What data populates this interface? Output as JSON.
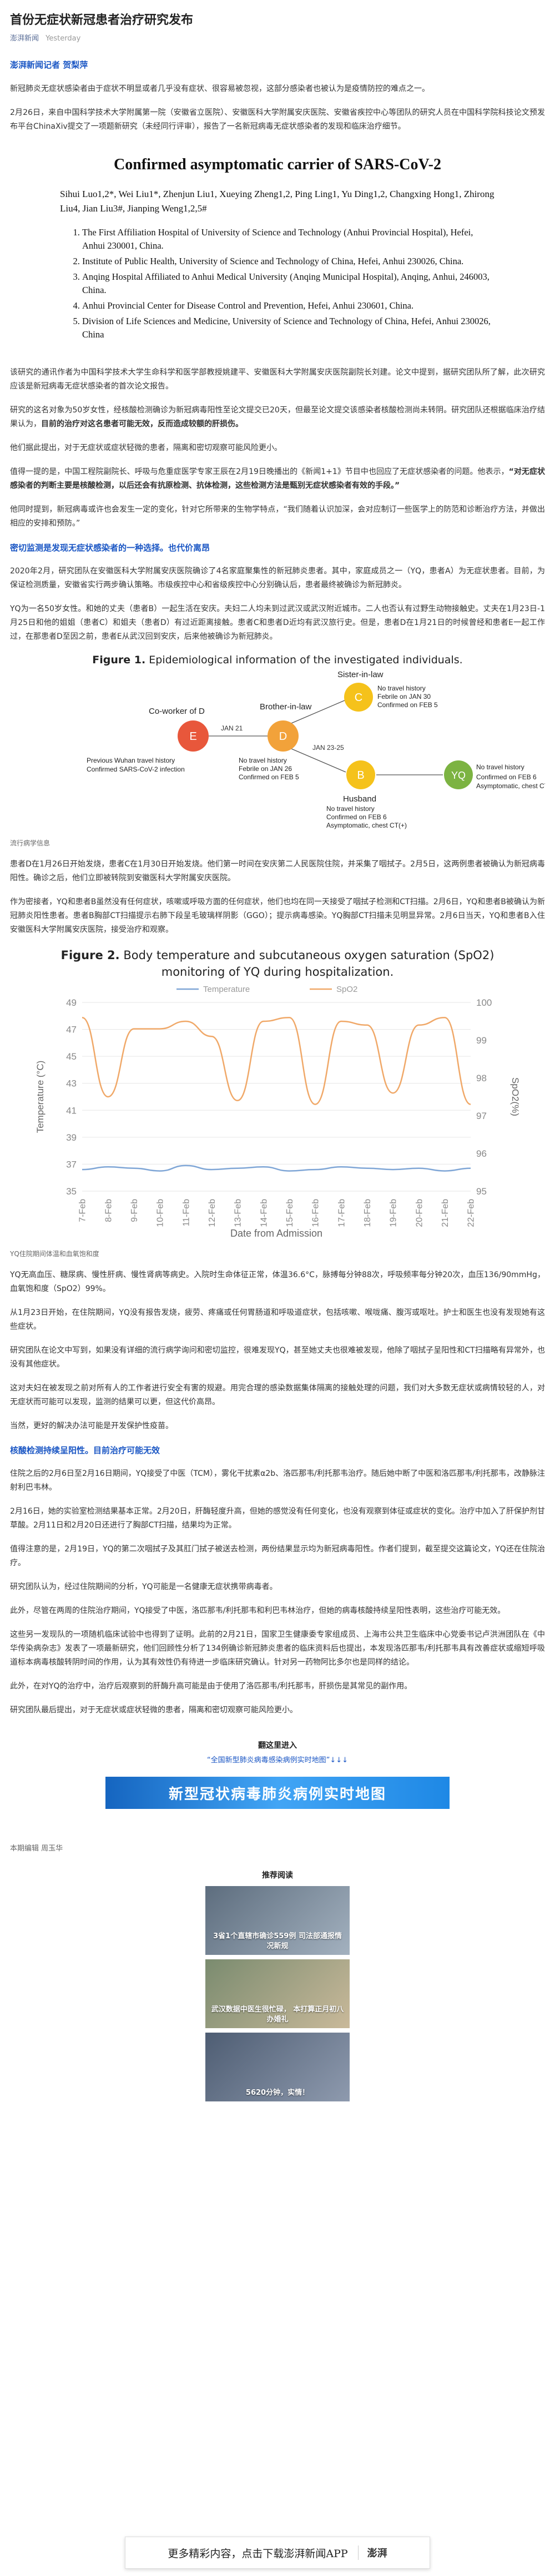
{
  "article": {
    "title": "首份无症状新冠患者治疗研究发布",
    "source": "澎湃新闻",
    "time": "Yesterday"
  },
  "byline": "澎湃新闻记者 贺梨萍",
  "paras": {
    "p1": "新冠肺炎无症状感染者由于症状不明显或者几乎没有症状、很容易被忽视，这部分感染者也被认为是疫情防控的难点之一。",
    "p2": "2月26日，来自中国科学技术大学附属第一院（安徽省立医院）、安徽医科大学附属安庆医院、安徽省疾控中心等团队的研究人员在中国科学院科技论文预发布平台ChinaXiv提交了一项题新研究（未经同行评审），报告了一名新冠病毒无症状感染者的发现和临床治疗细节。",
    "p3": "该研究的通讯作者为中国科学技术大学生命科学和医学部教授姚建平、安徽医科大学附属安庆医院副院长刘建。论文中提到，据研究团队所了解，此次研究应该是新冠病毒无症状感染者的首次论文报告。",
    "p4a": "研究的这名对象为50岁女性，经核酸检测确诊为新冠病毒阳性至论文提交已20天，但最至论文提交该感染者核酸检测尚未转阴。研究团队还根据临床治疗结果认为，",
    "p4b": "目前的治疗对这名患者可能无效，反而造成较额的肝损伤。",
    "p5": "他们据此提出，对于无症状或症状轻微的患者，隔离和密切观察可能风险更小。",
    "p6a": "值得一提的是，中国工程院副院长、呼吸与危重症医学专家王辰在2月19日晚播出的《新闻1+1》节目中也回应了无症状感染者的问题。他表示，",
    "p6b": "“对无症状感染者的判断主要是核酸检测，以后还会有抗原检测、抗体检测，这些检测方法是甄别无症状感染者有效的手段。”",
    "p7": "他同时提到，新冠病毒或许也会发生一定的变化，针对它所带来的生物学特点，“我们随着认识加深，会对应制订一些医学上的防范和诊断治疗方法，并做出相应的安排和预防。”",
    "s1_head": "密切监测是发现无症状感染者的一种选择。也代价离昂",
    "p8": "2020年2月，研究团队在安徽医科大学附属安庆医院确诊了4名家庭聚集性的新冠肺炎患者。其中，家庭成员之一（YQ，患者A）为无症状患者。目前，为保证检测质量，安徽省实行两步确认策略。市级疾控中心和省级疾控中心分别确认后，患者最终被确诊为新冠肺炎。",
    "p9": "YQ为一名50岁女性。和她的丈夫（患者B）一起生活在安庆。夫妇二人均未到过武汉或武汉附近城市。二人也否认有过野生动物接触史。丈夫在1月23日-1月25日和他的姐姐（患者C）和姐夫（患者D）有过近距离接触。患者C和患者D近均有武汉旅行史。但是，患者D在1月21日的时候曾经和患者E一起工作过，在那患者D至因之前，患者E从武汉回到安庆，后来他被确诊为新冠肺炎。",
    "cap1": "流行病学信息",
    "p10": "患者D在1月26日开始发烧，患者C在1月30日开始发烧。他们第一时间在安庆第二人民医院住院，并采集了咽拭子。2月5日，这两例患者被确认为新冠病毒阳性。确诊之后，他们立即被转院到安徽医科大学附属安庆医院。",
    "p11": "作为密接者，YQ和患者B虽然没有任何症状，咳嗽或呼吸方面的任何症状，他们也均在同一天接受了咽拭子检测和CT扫描。2月6日，YQ和患者B被确认为新冠肺炎阳性患者。患者B胸部CT扫描提示右肺下段呈毛玻璃样阴影（GGO）；提示病毒感染。YQ胸部CT扫描未见明显异常。2月6日当天，YQ和患者B入住安徽医科大学附属安庆医院，接受治疗和观察。",
    "cap2": "YQ住院期间体温和血氧饱和度",
    "p12": "YQ无高血压、糖尿病、慢性肝病、慢性肾病等病史。入院时生命体征正常，体温36.6°C，脉搏每分钟88次，呼吸频率每分钟20次，血压136/90mmHg，血氧饱和度（SpO2）99%。",
    "p13": "从1月23日开始，在住院期间，YQ没有报告发烧，疲劳、疼痛或任何胃肠道和呼吸道症状，包括咳嗽、喉咙痛、腹泻或呕吐。护士和医生也没有发现她有这些症状。",
    "p14": "研究团队在论文中写到，如果没有详细的流行病学询问和密切监控，很难发现YQ，甚至她丈夫也很难被发现，他除了咽拭子呈阳性和CT扫描略有异常外，也没有其他症状。",
    "p15": "这对夫妇在被发现之前对所有人的工作者进行安全有害的规避。用完合理的感染数据集体隔离的接触处理的问题，我们对大多数无症状或病情较轻的人，对无症状而可能可以发现，监测的结果可以更，但这代价高昂。",
    "p16": "当然，更好的解决办法可能是开发保护性疫苗。",
    "s2_head": "核酸检测持续呈阳性。目前治疗可能无效",
    "p17": "住院之后的2月6日至2月16日期间，YQ接受了中医（TCM），雾化干扰素α2b、洛匹那韦/利托那韦治疗。随后她中断了中医和洛匹那韦/利托那韦，改静脉注射利巴韦林。",
    "p18": "2月16日，她的实验室检测结果基本正常。2月20日，肝酶轻度升高，但她的感觉没有任何变化，也没有观察到体征或症状的变化。治疗中加入了肝保护剂甘草酸。2月11日和2月20日还进行了胸部CT扫描，结果均为正常。",
    "p19": "值得注意的是，2月19日，YQ的第二次咽拭子及其肛门拭子被送去检测，两份结果显示均为新冠病毒阳性。作者们提到，截至提交这篇论文，YQ还在住院治疗。",
    "p20": "研究团队认为，经过住院期间的分析，YQ可能是一名健康无症状携带病毒者。",
    "p21": "此外，尽管在两周的住院治疗期间，YQ接受了中医，洛匹那韦/利托那韦和利巴韦林治疗，但她的病毒核酸持续呈阳性表明，这些治疗可能无效。",
    "p22": "这些另一发现队的一项随机临床试验中也得到了证明。此前的2月21日，国家卫生健康委专家组成员、上海市公共卫生临床中心党委书记卢洪洲团队在《中华传染病杂志》发表了一项最新研究，他们回顾性分析了134例确诊新冠肺炎患者的临床资料后也提出，本发现洛匹那韦/利托那韦具有改善症状或缩短呼吸道标本病毒核酸转阴时间的作用，认为其有效性仍有待进一步临床研究确认。针对另一药物阿比多尔也是同样的结论。",
    "p23": "此外，在对YQ的治疗中，治疗后观察到的肝酶升高可能是由于使用了洛匹那韦/利托那韦，肝损伤是其常见的副作用。",
    "p24": "研究团队最后提出，对于无症状或症状轻微的患者，隔离和密切观察可能风险更小。"
  },
  "paper": {
    "title": "Confirmed asymptomatic carrier of SARS-CoV-2",
    "authors": "Sihui Luo1,2*, Wei Liu1*, Zhenjun Liu1, Xueying Zheng1,2, Ping Ling1, Yu Ding1,2, Changxing Hong1, Zhirong Liu4, Jian Liu3#, Jianping Weng1,2,5#",
    "affiliations": [
      "The First Affiliation Hospital of University of Science and Technology (Anhui Provincial Hospital), Hefei, Anhui 230001, China.",
      "Institute of Public Health, University of Science and Technology of China, Hefei, Anhui 230026, China.",
      "Anqing Hospital Affiliated to Anhui Medical University (Anqing Municipal Hospital), Anqing, Anhui, 246003, China.",
      "Anhui Provincial Center for Disease Control and Prevention, Hefei, Anhui 230601, China.",
      "Division of Life Sciences and Medicine, University of Science and Technology of China, Hefei, Anhui 230026, China"
    ]
  },
  "figure1": {
    "label": "Figure 1.",
    "title": " Epidemiological information of the investigated individuals.",
    "nodes": {
      "E": {
        "letter": "E",
        "color": "#e8573b",
        "label1": "Previous Wuhan travel history",
        "label2": "Confirmed SARS-CoV-2 infection"
      },
      "D": {
        "letter": "D",
        "color": "#f2a23a",
        "label0": "Co-worker of D",
        "label1": "No travel history",
        "label2": "Febrile on JAN 26",
        "label3": "Confirmed on FEB 5"
      },
      "C": {
        "letter": "C",
        "color": "#f5c21b",
        "label0": "Sister-in-law",
        "label1": "No travel history",
        "label2": "Febrile on JAN 30",
        "label3": "Confirmed on FEB 5"
      },
      "B": {
        "letter": "B",
        "color": "#f5c21b",
        "label0": "Husband",
        "label1": "No travel history",
        "label2": "Confirmed on FEB 6",
        "label3": "Asymptomatic, chest CT(+)"
      },
      "YQ": {
        "letter": "YQ",
        "color": "#7cb342",
        "label1": "No travel history",
        "label2": "Confirmed on FEB 6",
        "label3": "Asymptomatic, chest CT(-)"
      }
    },
    "edges": {
      "ed": "JAN 21",
      "dc_label": "Brother-in-law",
      "db": "JAN 23-25"
    }
  },
  "figure2": {
    "label": "Figure 2.",
    "title": " Body temperature and subcutaneous oxygen saturation (SpO2) monitoring of YQ during hospitalization."
  },
  "chart_data": {
    "type": "line",
    "title": "Body temperature and subcutaneous oxygen saturation (SpO2) monitoring of YQ during hospitalization.",
    "xlabel": "Date from Admission",
    "ylabel": "Temperature (°C)",
    "y2label": "SpO2(%)",
    "x": [
      "7-Feb",
      "8-Feb",
      "9-Feb",
      "10-Feb",
      "11-Feb",
      "12-Feb",
      "13-Feb",
      "14-Feb",
      "15-Feb",
      "16-Feb",
      "17-Feb",
      "18-Feb",
      "19-Feb",
      "20-Feb",
      "21-Feb",
      "22-Feb"
    ],
    "ylim": [
      35,
      49
    ],
    "y2lim": [
      95,
      100
    ],
    "yticks": [
      35,
      37,
      39,
      41,
      43,
      45,
      47,
      49
    ],
    "y2ticks": [
      95,
      96,
      97,
      98,
      99,
      100
    ],
    "legend": "top",
    "series": [
      {
        "name": "Temperature",
        "axis": "left",
        "color": "#7fa6d6",
        "values": [
          36.6,
          36.8,
          36.7,
          36.5,
          36.9,
          36.6,
          36.7,
          36.8,
          36.5,
          36.6,
          36.8,
          36.7,
          36.6,
          36.7,
          36.5,
          36.7
        ]
      },
      {
        "name": "SpO2",
        "axis": "right",
        "color": "#f0a868",
        "values": [
          99.6,
          97.5,
          99.3,
          99.3,
          99.5,
          99.1,
          97.4,
          99.5,
          99.6,
          97.3,
          99.5,
          99.4,
          97.6,
          99.4,
          99.6,
          97.3
        ]
      }
    ]
  },
  "tail": {
    "head": "翻这里进入",
    "link": "“全国新型肺炎病毒感染病例实时地图”↓↓↓",
    "banner": "新型冠状病毒肺炎病例实时地图",
    "editor": "本期编辑 周玉华"
  },
  "recommend": {
    "head": "推荐阅读",
    "items": [
      {
        "caption": "3省1个直辖市确诊559例 司法部通报情况新规"
      },
      {
        "caption": "武汉数据中医生很忙碌， 本打算正月初八办婚礼"
      },
      {
        "caption": "5620分钟，实情！"
      }
    ]
  },
  "app_bar": {
    "text": "更多精彩内容，点击下载澎湃新闻APP",
    "logo": "澎湃"
  }
}
